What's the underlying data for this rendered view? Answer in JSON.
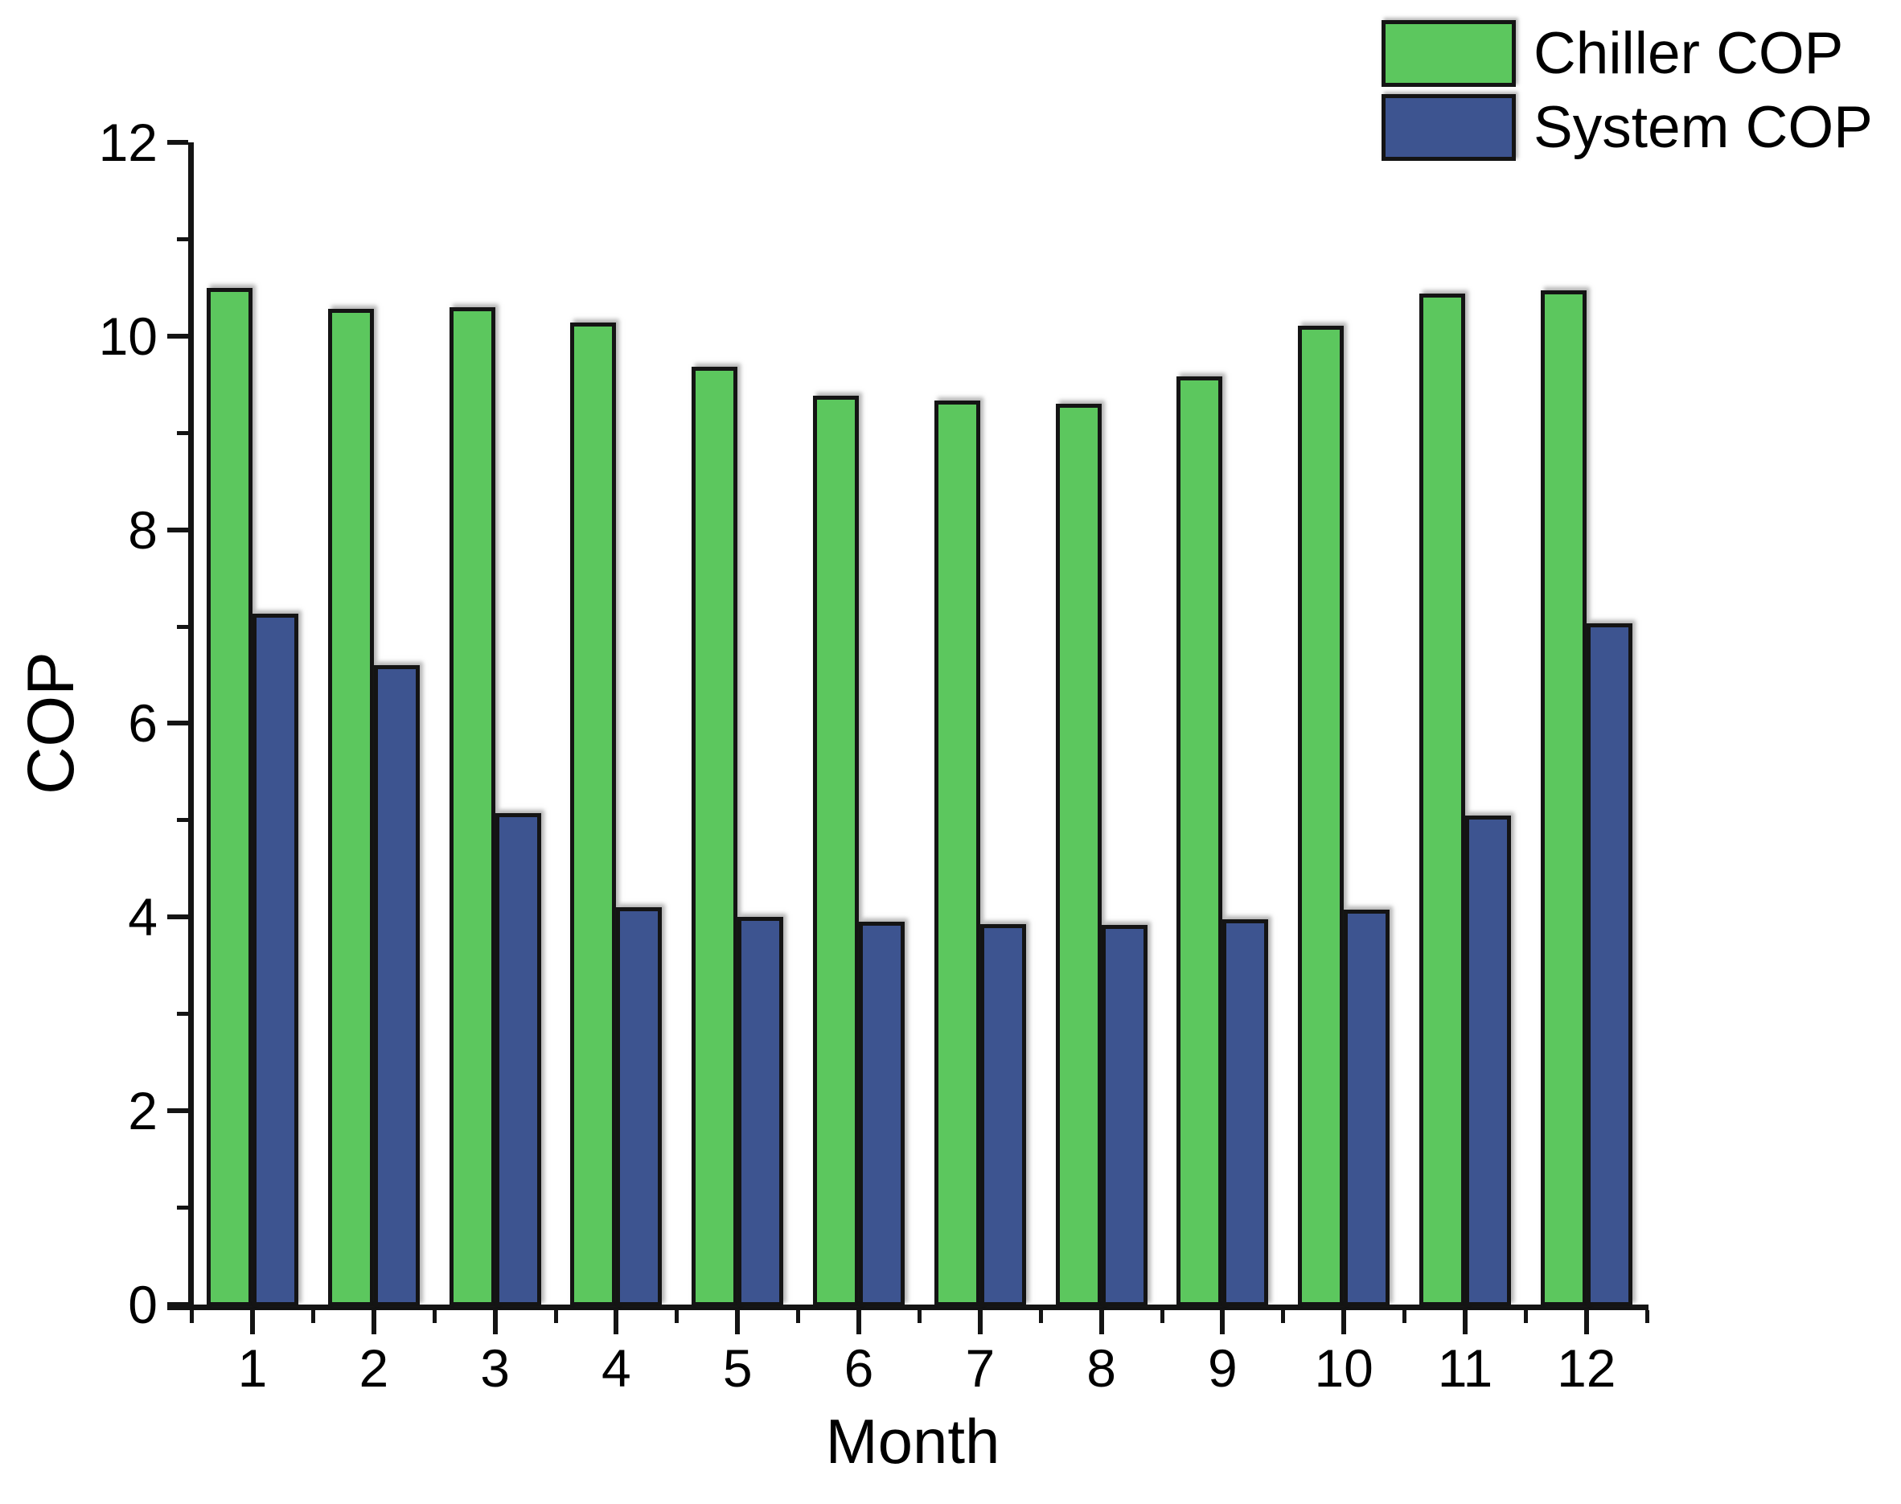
{
  "figure": {
    "background": "#ffffff",
    "text_color": "#000000",
    "axis_color": "#141414"
  },
  "chart_data": {
    "type": "bar",
    "title": "",
    "xlabel": "Month",
    "ylabel": "COP",
    "categories": [
      "1",
      "2",
      "3",
      "4",
      "5",
      "6",
      "7",
      "8",
      "9",
      "10",
      "11",
      "12"
    ],
    "series": [
      {
        "name": "Chiller COP",
        "color": "#5cc75e",
        "values": [
          10.5,
          10.28,
          10.3,
          10.14,
          9.68,
          9.38,
          9.33,
          9.3,
          9.58,
          10.11,
          10.44,
          10.47
        ]
      },
      {
        "name": "System COP",
        "color": "#3d5490",
        "values": [
          7.13,
          6.6,
          5.07,
          4.1,
          4.0,
          3.95,
          3.93,
          3.92,
          3.98,
          4.08,
          5.05,
          7.03
        ]
      }
    ],
    "ylim": [
      0,
      12
    ],
    "y_major_ticks": [
      0,
      2,
      4,
      6,
      8,
      10,
      12
    ],
    "y_minor_ticks": [
      1,
      3,
      5,
      7,
      9,
      11
    ],
    "grid": false,
    "bar_border_color": "#141414",
    "legend": {
      "position": "top-right",
      "entries": [
        {
          "label": "Chiller COP",
          "color": "#5cc75e"
        },
        {
          "label": "System COP",
          "color": "#3d5490"
        }
      ]
    }
  }
}
